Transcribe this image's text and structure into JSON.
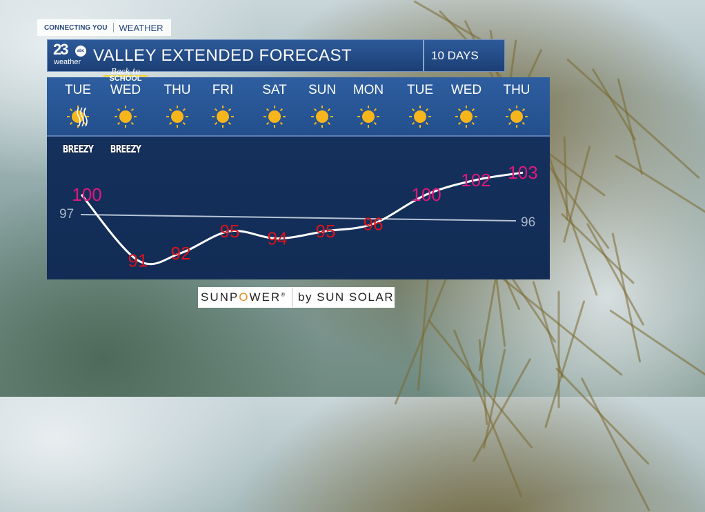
{
  "top_label": {
    "left": "CONNECTING YOU",
    "right": "WEATHER"
  },
  "header": {
    "logo_number": "23",
    "logo_network": "abc",
    "logo_word": "weather",
    "title": "VALLEY EXTENDED FORECAST",
    "range": "10 DAYS"
  },
  "back_to_school": {
    "script": "Back to",
    "word": "SCHOOL"
  },
  "days": [
    {
      "label": "TUE",
      "icon": "sun-wind-icon",
      "note": "BREEZY"
    },
    {
      "label": "WED",
      "icon": "sun-icon",
      "note": "BREEZY"
    },
    {
      "label": "THU",
      "icon": "sun-icon"
    },
    {
      "label": "FRI",
      "icon": "sun-icon"
    },
    {
      "label": "SAT",
      "icon": "sun-icon"
    },
    {
      "label": "SUN",
      "icon": "sun-icon"
    },
    {
      "label": "MON",
      "icon": "sun-icon"
    },
    {
      "label": "TUE",
      "icon": "sun-icon"
    },
    {
      "label": "WED",
      "icon": "sun-icon"
    },
    {
      "label": "THU",
      "icon": "sun-icon"
    }
  ],
  "chart_data": {
    "type": "line",
    "categories": [
      "TUE",
      "WED",
      "THU",
      "FRI",
      "SAT",
      "SUN",
      "MON",
      "TUE",
      "WED",
      "THU"
    ],
    "series": [
      {
        "values": [
          100,
          91,
          92,
          95,
          94,
          95,
          96,
          100,
          102,
          103
        ]
      }
    ],
    "normal": {
      "start": "97",
      "end": "96",
      "values": [
        97,
        96
      ]
    },
    "colors": {
      "hot": "#e0197d",
      "normal_temp": "#d8131c",
      "line": "#ffffff",
      "normal_line": "#b8c4d4"
    }
  },
  "sponsor": {
    "brand_pre": "SUNP",
    "brand_o": "O",
    "brand_post": "WER",
    "reg": "®",
    "by": "by SUN SOLAR"
  }
}
